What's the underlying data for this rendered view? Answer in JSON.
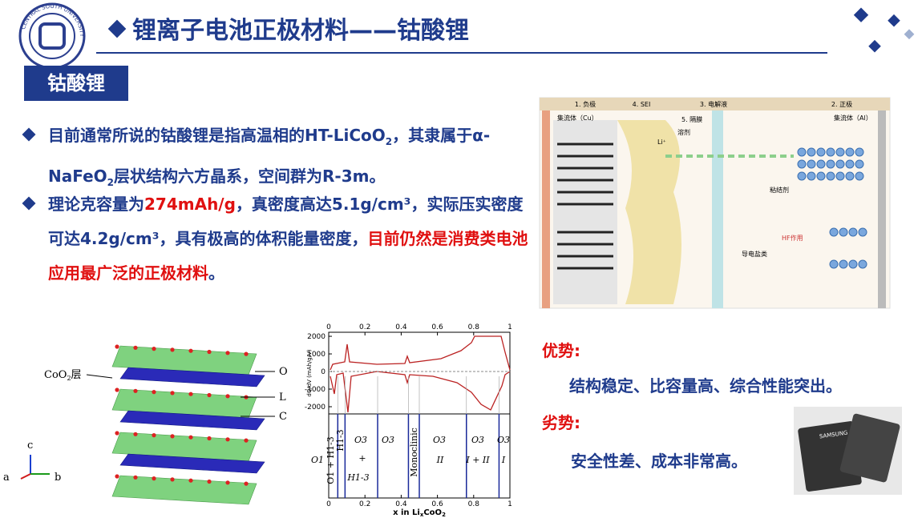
{
  "header": {
    "title": "锂离子电池正极材料——钴酸锂",
    "tag": "钴酸锂",
    "logo": "CENTRAL SOUTH UNIVERSITY"
  },
  "bullets": [
    {
      "runs": [
        {
          "text": "目前通常所说的钴酸锂是指高温相的HT-LiCoO"
        },
        {
          "text": "2",
          "sub": true
        },
        {
          "text": "，其隶属于α-NaFeO"
        },
        {
          "text": "2",
          "sub": true
        },
        {
          "text": "层状结构六方晶系，空间群为R-3m。"
        }
      ]
    },
    {
      "runs": [
        {
          "text": "理论克容量为"
        },
        {
          "text": "274mAh/g",
          "red": true
        },
        {
          "text": "，真密度高达5.1g/cm³，实际压实密度可达4.2g/cm³，具有极高的体积能量密度，"
        },
        {
          "text": "目前仍然是消费类电池应用最广泛的正极材料",
          "red": true
        },
        {
          "text": "。"
        }
      ]
    }
  ],
  "pros": {
    "label": "优势:",
    "text": "结构稳定、比容量高、综合性能突出。"
  },
  "cons": {
    "label": "劣势:",
    "text": "安全性差、成本非常高。"
  },
  "crystal": {
    "layer": "CoO",
    "layer_sub": "2",
    "layer_suffix": "层",
    "labels": [
      "O",
      "L",
      "C"
    ],
    "axes": [
      "c",
      "a",
      "b"
    ]
  },
  "dqdv": {
    "ylabel": "dQ/dV (mAh/g/V)",
    "xlabel": "x in Li",
    "xlabel_sub": "x",
    "xlabel_rest": "CoO",
    "xlabel_sub2": "2",
    "xlim": [
      0,
      1
    ],
    "xticks": [
      0,
      0.2,
      0.4,
      0.6,
      0.8,
      1
    ],
    "ylim": [
      -2410,
      2230
    ],
    "yticks": [
      2000,
      1000,
      0,
      -1000,
      -2000
    ],
    "boundaries": [
      0.05,
      0.09,
      0.27,
      0.44,
      0.5,
      0.76,
      0.94
    ],
    "phases": [
      "O1",
      "O1 + H1-3",
      "H1-3",
      "O3",
      "+",
      "H1-3",
      "O3",
      "Monoclinic",
      "O3",
      "II",
      "O3",
      "I + II",
      "O3",
      "I"
    ]
  },
  "diagram": {
    "sections": [
      "1. 负极",
      "4. SEI",
      "3. 电解液",
      "2. 正极"
    ],
    "labels": [
      "集流体（Cu）",
      "集流体（Al）",
      "5. 隔膜",
      "溶剂",
      "Li⁺",
      "导电盐类",
      "HF作用",
      "粘结剂"
    ]
  },
  "photo": {
    "brand": "SAMSUNG"
  }
}
